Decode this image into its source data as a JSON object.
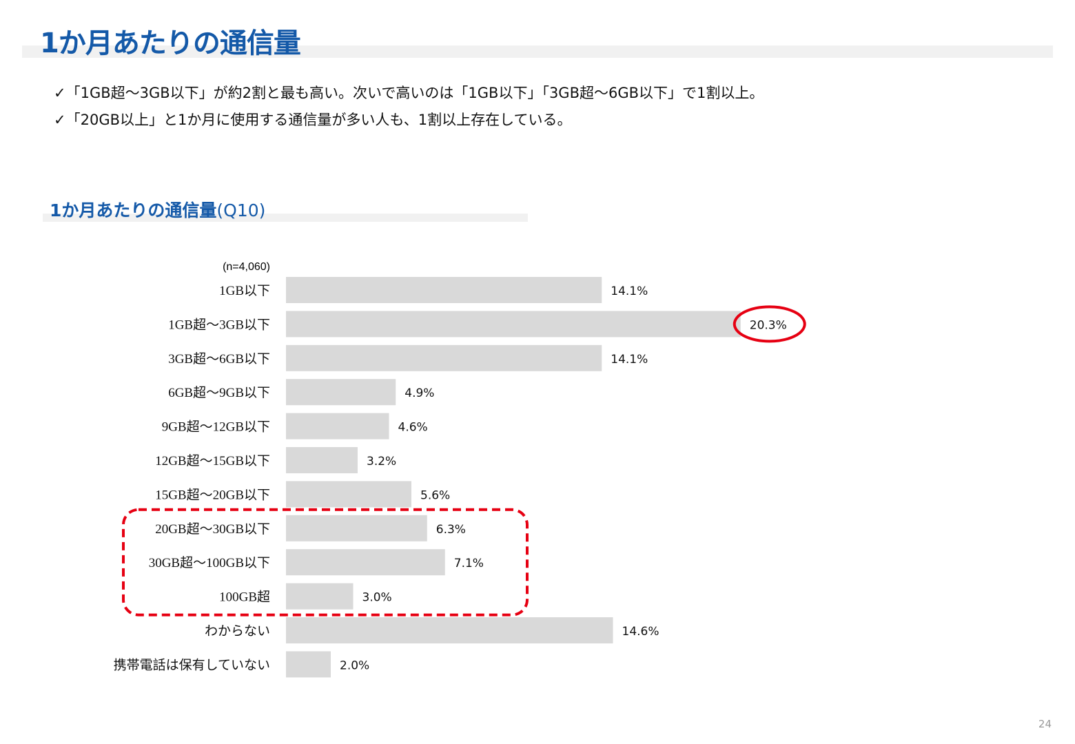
{
  "header": {
    "title": "1か月あたりの通信量"
  },
  "bullets": [
    "✓「1GB超～3GB以下」が約2割と最も高い。次いで高いのは「1GB以下」「3GB超～6GB以下」で1割以上。",
    "✓「20GB以上」と1か月に使用する通信量が多い人も、1割以上存在している。"
  ],
  "chart_title": {
    "main": "1か月あたりの通信量",
    "suffix": "(Q10)"
  },
  "page_number": "24",
  "chart_data": {
    "type": "bar",
    "orientation": "horizontal",
    "note": "(n=4,060)",
    "categories": [
      "1GB以下",
      "1GB超～3GB以下",
      "3GB超～6GB以下",
      "6GB超～9GB以下",
      "9GB超～12GB以下",
      "12GB超～15GB以下",
      "15GB超～20GB以下",
      "20GB超～30GB以下",
      "30GB超～100GB以下",
      "100GB超",
      "わからない",
      "携帯電話は保有していない"
    ],
    "values": [
      14.1,
      20.3,
      14.1,
      4.9,
      4.6,
      3.2,
      5.6,
      6.3,
      7.1,
      3.0,
      14.6,
      2.0
    ],
    "value_labels": [
      "14.1%",
      "20.3%",
      "14.1%",
      "4.9%",
      "4.6%",
      "3.2%",
      "5.6%",
      "6.3%",
      "7.1%",
      "3.0%",
      "14.6%",
      "2.0%"
    ],
    "bar_color": "#d9d9d9",
    "highlight_color": "#e60012",
    "highlight_circle_index": 1,
    "highlight_box_range": [
      7,
      9
    ],
    "grid": false
  }
}
